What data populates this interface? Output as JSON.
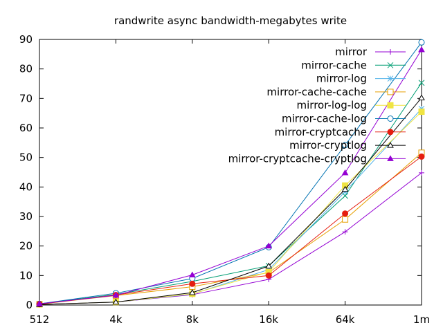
{
  "chart_data": {
    "type": "line",
    "title": "randwrite async bandwidth-megabytes write",
    "xlabel": "",
    "ylabel": "",
    "categories": [
      "512",
      "4k",
      "8k",
      "16k",
      "64k",
      "1m"
    ],
    "ylim": [
      0,
      90
    ],
    "yticks": [
      0,
      10,
      20,
      30,
      40,
      50,
      60,
      70,
      80,
      90
    ],
    "grid": false,
    "legend_position": "top-right",
    "series": [
      {
        "name": "mirror",
        "color": "#9400d3",
        "marker": "plus",
        "values": [
          0.2,
          1.0,
          3.5,
          8.7,
          24.8,
          44.8
        ]
      },
      {
        "name": "mirror-cache",
        "color": "#009e73",
        "marker": "cross",
        "values": [
          0.4,
          3.6,
          8.0,
          13.3,
          37.0,
          75.3
        ]
      },
      {
        "name": "mirror-log",
        "color": "#56b4e9",
        "marker": "star",
        "values": [
          0.2,
          1.0,
          3.7,
          12.0,
          38.4,
          66.5
        ]
      },
      {
        "name": "mirror-cache-cache",
        "color": "#e69f00",
        "marker": "square",
        "values": [
          0.3,
          3.2,
          6.2,
          11.0,
          29.0,
          51.6
        ]
      },
      {
        "name": "mirror-log-log",
        "color": "#f0e442",
        "marker": "square-filled",
        "values": [
          0.2,
          1.0,
          3.8,
          11.2,
          40.5,
          65.5
        ]
      },
      {
        "name": "mirror-cache-log",
        "color": "#0072b2",
        "marker": "circle",
        "values": [
          0.4,
          4.0,
          9.0,
          19.6,
          54.2,
          89.0
        ]
      },
      {
        "name": "mirror-cryptcache",
        "color": "#e51e10",
        "marker": "circle-filled",
        "values": [
          0.3,
          3.4,
          7.2,
          10.0,
          31.0,
          50.3
        ]
      },
      {
        "name": "mirror-cryptlog",
        "color": "#000000",
        "marker": "triangle",
        "values": [
          0.2,
          1.0,
          4.2,
          13.2,
          39.2,
          70.2
        ]
      },
      {
        "name": "mirror-cryptcache-cryptlog",
        "color": "#9400d3",
        "marker": "triangle-filled",
        "values": [
          0.4,
          3.3,
          10.2,
          20.0,
          44.8,
          86.5
        ]
      }
    ]
  }
}
